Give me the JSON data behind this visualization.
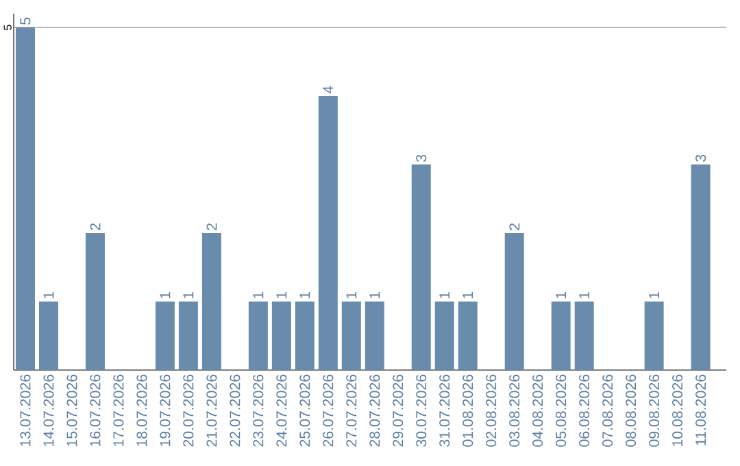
{
  "chart_data": {
    "type": "bar",
    "categories": [
      "13.07.2026",
      "14.07.2026",
      "15.07.2026",
      "16.07.2026",
      "17.07.2026",
      "18.07.2026",
      "19.07.2026",
      "20.07.2026",
      "21.07.2026",
      "22.07.2026",
      "23.07.2026",
      "24.07.2026",
      "25.07.2026",
      "26.07.2026",
      "27.07.2026",
      "28.07.2026",
      "29.07.2026",
      "30.07.2026",
      "31.07.2026",
      "01.08.2026",
      "02.08.2026",
      "03.08.2026",
      "04.08.2026",
      "05.08.2026",
      "06.08.2026",
      "07.08.2026",
      "08.08.2026",
      "09.08.2026",
      "10.08.2026",
      "11.08.2026"
    ],
    "values": [
      5,
      1,
      0,
      2,
      0,
      0,
      1,
      1,
      2,
      0,
      1,
      1,
      1,
      4,
      1,
      1,
      0,
      3,
      1,
      1,
      0,
      2,
      0,
      1,
      1,
      0,
      0,
      1,
      0,
      3
    ],
    "value_labels": [
      "5",
      "1",
      null,
      "2",
      null,
      null,
      "1",
      "1",
      "2",
      null,
      "1",
      "1",
      "1",
      "4",
      "1",
      "1",
      null,
      "3",
      "1",
      "1",
      null,
      "2",
      null,
      "1",
      "1",
      null,
      null,
      "1",
      null,
      "3"
    ],
    "color": "#6a8cac",
    "ylim": [
      0,
      5.2
    ],
    "yticks": [
      5
    ],
    "grid": "y"
  }
}
